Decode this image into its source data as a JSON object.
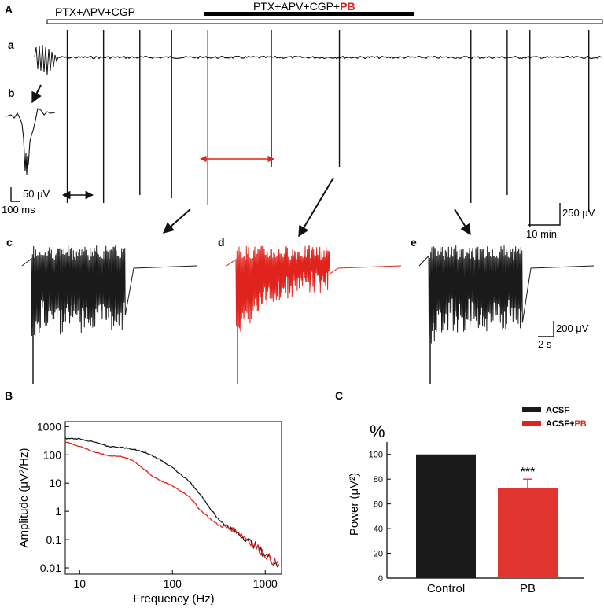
{
  "panel_a": {
    "letter": "A",
    "condition1": "PTX+APV+CGP",
    "condition2_prefix": "PTX+APV+CGP+",
    "condition2_drug": "PB",
    "sub_a": "a",
    "sub_b": "b",
    "sub_c": "c",
    "sub_d": "d",
    "sub_e": "e",
    "scale_b_amp": "50 μV",
    "scale_b_time": "100 ms",
    "scale_a_amp": "250 μV",
    "scale_a_time": "10 min",
    "scale_c_amp": "200 μV",
    "scale_c_time": "2 s",
    "event_times_min": [
      2,
      10,
      18,
      25,
      33,
      47,
      62,
      91,
      99,
      104,
      117
    ],
    "colors": {
      "control": "#1a1a1a",
      "pb": "#e0231c"
    }
  },
  "chart_data": [
    {
      "panel": "B",
      "type": "line",
      "title": "",
      "xlabel": "Frequency (Hz)",
      "ylabel": "Amplitude (μV²/Hz)",
      "xscale": "log",
      "yscale": "log",
      "xlim": [
        7,
        1500
      ],
      "ylim": [
        0.006,
        1500
      ],
      "xticks": [
        "10",
        "100",
        "1000"
      ],
      "yticks": [
        "1000",
        "100",
        "10",
        "1",
        "0.1",
        "0.01"
      ],
      "series": [
        {
          "name": "ACSF",
          "color": "#1a1a1a",
          "x": [
            7,
            10,
            15,
            20,
            30,
            40,
            50,
            60,
            80,
            100,
            150,
            200,
            300,
            400,
            500,
            700,
            1000,
            1400
          ],
          "y": [
            380,
            370,
            270,
            200,
            180,
            150,
            125,
            95,
            58,
            35,
            12,
            4,
            0.6,
            0.28,
            0.17,
            0.08,
            0.03,
            0.012
          ]
        },
        {
          "name": "ACSF+PB",
          "color": "#e0231c",
          "x": [
            7,
            10,
            15,
            20,
            30,
            40,
            50,
            60,
            80,
            100,
            150,
            200,
            300,
            400,
            500,
            700,
            1000,
            1400
          ],
          "y": [
            290,
            200,
            120,
            95,
            85,
            55,
            30,
            18,
            11,
            8,
            3.5,
            1.1,
            0.35,
            0.26,
            0.2,
            0.08,
            0.03,
            0.012
          ]
        }
      ]
    },
    {
      "panel": "C",
      "type": "bar",
      "title": "",
      "categories": [
        "Control",
        "PB"
      ],
      "values": [
        100,
        73
      ],
      "errors": [
        0,
        7
      ],
      "colors": [
        "#1a1a1a",
        "#e03530"
      ],
      "ylim": [
        0,
        110
      ],
      "yticks": [
        "0",
        "20",
        "40",
        "60",
        "80",
        "100"
      ],
      "ylabel": "Power (μV²)",
      "unit_label": "%",
      "significance": "***",
      "legend": [
        "ACSF",
        "ACSF+PB"
      ]
    }
  ],
  "legend_c": {
    "acsf": "ACSF",
    "pb_prefix": "ACSF+",
    "pb_drug": "PB"
  },
  "labels": {
    "panel_b": "B",
    "panel_c": "C"
  }
}
